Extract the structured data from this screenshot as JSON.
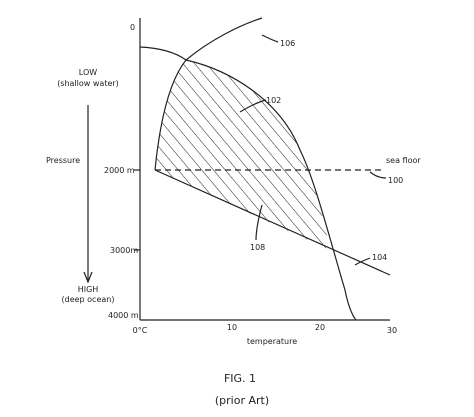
{
  "axes": {
    "y_top": "0",
    "y_labels": [
      "2000 m",
      "3000m",
      "4000 m"
    ],
    "x_labels": [
      "0°C",
      "10",
      "20",
      "30"
    ],
    "x_title": "temperature",
    "y_title": "Pressure",
    "low_label": [
      "LOW",
      "(shallow water)"
    ],
    "high_label": [
      "HIGH",
      "(deep ocean)"
    ]
  },
  "callouts": {
    "curve": "106",
    "region": "102",
    "sea_floor": "sea floor",
    "sea_floor_ref": "100",
    "lower_region": "108",
    "line": "104"
  },
  "caption": {
    "figure": "FIG. 1",
    "note": "(prior Art)"
  }
}
